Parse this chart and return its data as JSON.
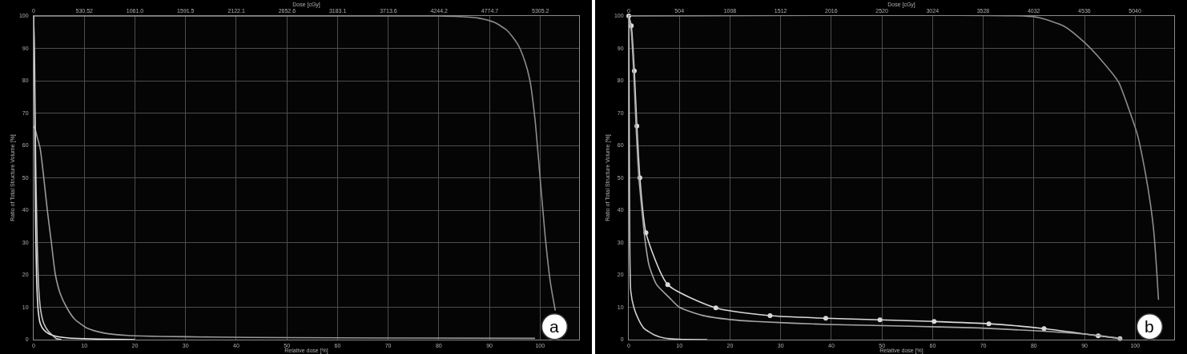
{
  "chart_data": [
    {
      "type": "line",
      "xlabel": "Relative dose [%]",
      "x2label": "Dose [cGy]",
      "ylabel": "Ratio of Total Structure Volume [%]",
      "xlim": [
        0,
        107.7
      ],
      "xticks": [
        0,
        10,
        20,
        30,
        40,
        50,
        60,
        70,
        80,
        90,
        100
      ],
      "x2lim": [
        0,
        5710
      ],
      "x2ticks": [
        0,
        530.52,
        {
          "value": 1061,
          "label": "1061.0"
        },
        1591.5,
        2122.1,
        2652.6,
        3183.1,
        3713.6,
        4244.2,
        4774.7,
        5305.2
      ],
      "ylim": [
        0,
        100
      ],
      "yticks": [
        0,
        10,
        20,
        30,
        40,
        50,
        60,
        70,
        80,
        90,
        100
      ],
      "grid": true,
      "annotations": [
        "a"
      ],
      "series": [
        {
          "color": "#8c8c8c",
          "x": [
            0,
            80,
            84,
            88,
            91,
            93.5,
            95.5,
            97,
            98,
            99,
            100,
            101,
            102,
            103
          ],
          "values": [
            100,
            100,
            99.8,
            99.3,
            98,
            95.5,
            91.5,
            86,
            80,
            68,
            50,
            32,
            18,
            9
          ]
        },
        {
          "color": "#9a9a9a",
          "x": [
            0,
            0.3,
            0.8,
            1.3,
            2,
            2.7,
            3.5,
            4.3,
            5.3,
            6.5,
            8,
            10.6,
            14,
            18.5,
            25,
            35,
            50,
            70,
            99
          ],
          "values": [
            66,
            65,
            62,
            59,
            50,
            40,
            30,
            20,
            14,
            10,
            6.5,
            3.5,
            2,
            1.3,
            1,
            0.8,
            0.6,
            0.5,
            0.4
          ]
        },
        {
          "color": "#e6e6e6",
          "x": [
            0,
            0.1,
            0.25,
            0.4,
            0.6,
            0.9,
            1.3,
            2,
            3,
            4.5,
            7,
            10,
            15,
            20
          ],
          "values": [
            100,
            90,
            60,
            35,
            18,
            9,
            5,
            3,
            1.8,
            1,
            0.5,
            0.3,
            0.1,
            0
          ]
        },
        {
          "color": "#c4c4c4",
          "x": [
            0,
            0.2,
            0.4,
            0.7,
            1,
            1.4,
            2,
            2.8,
            3.6,
            4.5,
            5.5
          ],
          "values": [
            100,
            85,
            55,
            30,
            16,
            9,
            5,
            2.8,
            1.5,
            0.3,
            0
          ]
        }
      ]
    },
    {
      "type": "line",
      "xlabel": "Relative dose [%]",
      "x2label": "Dose [cGy]",
      "ylabel": "Ratio of Total Structure Volume [%]",
      "xlim": [
        0,
        107.7
      ],
      "xticks": [
        0,
        10,
        20,
        30,
        40,
        50,
        60,
        70,
        80,
        90,
        100
      ],
      "x2lim": [
        0,
        5430
      ],
      "x2ticks": [
        0,
        504,
        1008,
        1512,
        2016,
        2520,
        3024,
        3528,
        4032,
        4536,
        5040
      ],
      "ylim": [
        0,
        100
      ],
      "yticks": [
        0,
        10,
        20,
        30,
        40,
        50,
        60,
        70,
        80,
        90,
        100
      ],
      "grid": true,
      "annotations": [
        "b"
      ],
      "series": [
        {
          "color": "#8c8c8c",
          "x": [
            0,
            78,
            81,
            86,
            90,
            93.5,
            96.7,
            98.8,
            100.5,
            102,
            103,
            103.7,
            104.3,
            104.6
          ],
          "values": [
            100,
            100,
            99.5,
            96.8,
            91.8,
            86,
            79.6,
            71,
            63,
            51.6,
            42,
            33,
            20,
            12.3
          ]
        },
        {
          "color": "#d9d9d9",
          "marker": "circle",
          "x": [
            0,
            0.5,
            1.1,
            1.6,
            2.2,
            3.4,
            7.7,
            17.2,
            27.9,
            38.9,
            49.6,
            60.3,
            71.1,
            82,
            92.7,
            97
          ],
          "values": [
            100,
            97,
            83,
            66,
            50,
            33,
            17,
            9.8,
            7.4,
            6.6,
            6.1,
            5.6,
            4.9,
            3.4,
            1.2,
            0.3
          ]
        },
        {
          "color": "#a6a6a6",
          "x": [
            0,
            0.5,
            1,
            1.5,
            2,
            2.6,
            3.2,
            4,
            5.5,
            8,
            10,
            14.5,
            20,
            25,
            39,
            54,
            69,
            80.7,
            92,
            97.4
          ],
          "values": [
            100,
            95,
            82,
            64,
            50,
            40,
            31,
            23,
            17,
            13,
            10,
            7.5,
            6.2,
            5.6,
            4.7,
            4.2,
            3.6,
            2.7,
            1.4,
            0.3
          ]
        },
        {
          "color": "#cfcfcf",
          "x": [
            0,
            0.1,
            0.2,
            0.4,
            1,
            2,
            3,
            5,
            7,
            10,
            15.5
          ],
          "values": [
            100,
            60,
            30,
            15,
            10,
            6,
            3.5,
            1.5,
            0.5,
            0.1,
            0
          ]
        }
      ]
    }
  ]
}
